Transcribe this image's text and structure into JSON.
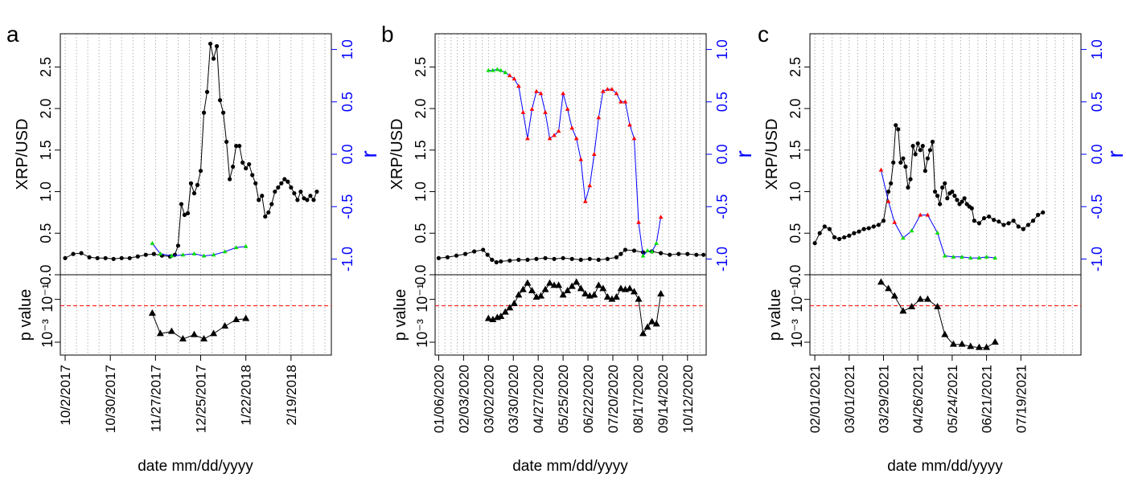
{
  "figure": {
    "panel_letters": [
      "a",
      "b",
      "c"
    ],
    "xlabel": "date mm/dd/yyyy",
    "price_ylabel": "XRP/USD",
    "r_ylabel": "r",
    "p_ylabel": "p value",
    "p_tick_upper": "10⁻¹",
    "p_tick_lower": "10⁻³",
    "colors": {
      "price": "#000000",
      "r_axis": "#0000ff",
      "r_line": "#0000ff",
      "r_sig": "#00dd00",
      "r_nonsig": "#ff0000",
      "threshold": "#ff0000",
      "grid": "#a0a0a0"
    }
  },
  "chart_data": [
    {
      "type": "line",
      "panel": "a",
      "title": "",
      "xlabel": "date mm/dd/yyyy",
      "ylabel": "XRP/USD",
      "y2label": "r",
      "ylim": [
        0,
        2.9
      ],
      "y2lim": [
        -1.15,
        1.15
      ],
      "xlim_days": [
        -3,
        165
      ],
      "x_ticks": [
        {
          "day": 0,
          "label": "10/2/2017"
        },
        {
          "day": 28,
          "label": "10/30/2017"
        },
        {
          "day": 56,
          "label": "11/27/2017"
        },
        {
          "day": 84,
          "label": "12/25/2017"
        },
        {
          "day": 112,
          "label": "1/22/2018"
        },
        {
          "day": 140,
          "label": "2/19/2018"
        }
      ],
      "y_ticks": [
        0,
        0.5,
        1.0,
        1.5,
        2.0,
        2.5
      ],
      "y_tick_labels": [
        "0.0",
        "0.5",
        "1.0",
        "1.5",
        "2.0",
        "2.5"
      ],
      "y2_ticks": [
        -1.0,
        -0.5,
        0.0,
        0.5,
        1.0
      ],
      "y2_tick_labels": [
        "-1.0",
        "-0.5",
        "0.0",
        "0.5",
        "1.0"
      ],
      "price": {
        "name": "XRP/USD",
        "x": [
          0,
          5,
          10,
          15,
          20,
          25,
          30,
          35,
          40,
          45,
          50,
          55,
          60,
          65,
          68,
          70,
          72,
          74,
          76,
          78,
          80,
          82,
          84,
          86,
          88,
          90,
          92,
          94,
          96,
          98,
          100,
          102,
          104,
          106,
          108,
          110,
          112,
          114,
          116,
          118,
          120,
          122,
          124,
          126,
          128,
          130,
          132,
          134,
          136,
          138,
          140,
          142,
          144,
          146,
          148,
          150,
          152,
          154,
          156
        ],
        "y": [
          0.2,
          0.25,
          0.26,
          0.21,
          0.2,
          0.2,
          0.19,
          0.2,
          0.2,
          0.22,
          0.24,
          0.25,
          0.23,
          0.22,
          0.24,
          0.35,
          0.85,
          0.72,
          0.74,
          1.1,
          0.98,
          1.08,
          1.25,
          1.95,
          2.2,
          2.78,
          2.6,
          2.75,
          2.1,
          1.95,
          1.6,
          1.15,
          1.3,
          1.55,
          1.55,
          1.35,
          1.28,
          1.33,
          1.2,
          1.1,
          0.9,
          0.95,
          0.7,
          0.75,
          0.85,
          1.0,
          1.05,
          1.1,
          1.15,
          1.12,
          1.05,
          0.98,
          0.9,
          1.0,
          0.92,
          0.9,
          0.95,
          0.9,
          1.0
        ]
      },
      "r": {
        "name": "r",
        "x": [
          54,
          59,
          66,
          73,
          80,
          86,
          92,
          99,
          106,
          112
        ],
        "y": [
          -0.85,
          -0.95,
          -0.97,
          -0.96,
          -0.95,
          -0.97,
          -0.96,
          -0.93,
          -0.89,
          -0.88
        ],
        "significant": [
          true,
          true,
          true,
          true,
          true,
          true,
          true,
          true,
          true,
          true
        ]
      },
      "p_value": {
        "name": "p value",
        "x": [
          54,
          59,
          66,
          73,
          80,
          86,
          92,
          99,
          106,
          112
        ],
        "log10_p": [
          -1.65,
          -2.6,
          -2.5,
          -2.85,
          -2.65,
          -2.85,
          -2.6,
          -2.25,
          -1.95,
          -1.9
        ]
      },
      "threshold": {
        "p": 0.05,
        "log10_p": -1.3
      }
    },
    {
      "type": "line",
      "panel": "b",
      "title": "",
      "xlabel": "date mm/dd/yyyy",
      "ylabel": "XRP/USD",
      "y2label": "r",
      "ylim": [
        0,
        2.9
      ],
      "y2lim": [
        -1.15,
        1.15
      ],
      "xlim_days": [
        -4,
        301
      ],
      "x_ticks": [
        {
          "day": 0,
          "label": "01/06/2020"
        },
        {
          "day": 28,
          "label": "02/03/2020"
        },
        {
          "day": 56,
          "label": "03/02/2020"
        },
        {
          "day": 84,
          "label": "03/30/2020"
        },
        {
          "day": 112,
          "label": "04/27/2020"
        },
        {
          "day": 140,
          "label": "05/25/2020"
        },
        {
          "day": 168,
          "label": "06/22/2020"
        },
        {
          "day": 196,
          "label": "07/20/2020"
        },
        {
          "day": 224,
          "label": "08/17/2020"
        },
        {
          "day": 252,
          "label": "09/14/2020"
        },
        {
          "day": 280,
          "label": "10/12/2020"
        }
      ],
      "y_ticks": [
        0,
        0.5,
        1.0,
        1.5,
        2.0,
        2.5
      ],
      "y_tick_labels": [
        "0.0",
        "0.5",
        "1.0",
        "1.5",
        "2.0",
        "2.5"
      ],
      "y2_ticks": [
        -1.0,
        -0.5,
        0.0,
        0.5,
        1.0
      ],
      "y2_tick_labels": [
        "-1.0",
        "-0.5",
        "0.0",
        "0.5",
        "1.0"
      ],
      "price": {
        "name": "XRP/USD",
        "x": [
          0,
          10,
          20,
          30,
          40,
          50,
          55,
          60,
          65,
          70,
          80,
          90,
          100,
          110,
          120,
          130,
          140,
          150,
          160,
          170,
          180,
          190,
          200,
          205,
          210,
          220,
          230,
          240,
          250,
          260,
          270,
          280,
          290,
          298
        ],
        "y": [
          0.2,
          0.21,
          0.23,
          0.25,
          0.28,
          0.3,
          0.24,
          0.18,
          0.15,
          0.16,
          0.17,
          0.18,
          0.18,
          0.19,
          0.2,
          0.19,
          0.2,
          0.19,
          0.18,
          0.19,
          0.18,
          0.19,
          0.21,
          0.25,
          0.3,
          0.29,
          0.27,
          0.28,
          0.26,
          0.24,
          0.25,
          0.25,
          0.24,
          0.24
        ]
      },
      "r": {
        "name": "r",
        "x": [
          56,
          61,
          66,
          70,
          75,
          80,
          85,
          90,
          95,
          100,
          105,
          110,
          115,
          120,
          125,
          130,
          135,
          140,
          145,
          150,
          155,
          160,
          165,
          170,
          175,
          180,
          185,
          190,
          195,
          200,
          205,
          210,
          215,
          220,
          225,
          230,
          235,
          240,
          245,
          250
        ],
        "y": [
          0.8,
          0.8,
          0.81,
          0.8,
          0.78,
          0.75,
          0.72,
          0.65,
          0.4,
          0.15,
          0.43,
          0.6,
          0.58,
          0.4,
          0.15,
          0.18,
          0.22,
          0.58,
          0.43,
          0.25,
          0.15,
          -0.05,
          -0.45,
          -0.3,
          0.0,
          0.35,
          0.6,
          0.62,
          0.62,
          0.58,
          0.5,
          0.5,
          0.28,
          0.15,
          -0.65,
          -0.97,
          -0.92,
          -0.93,
          -0.85,
          -0.6
        ],
        "significant": [
          true,
          true,
          true,
          true,
          true,
          false,
          false,
          false,
          false,
          false,
          false,
          false,
          false,
          false,
          false,
          false,
          false,
          false,
          false,
          false,
          false,
          false,
          false,
          false,
          false,
          false,
          false,
          false,
          false,
          false,
          false,
          false,
          false,
          false,
          false,
          true,
          true,
          true,
          true,
          false
        ]
      },
      "p_value": {
        "name": "p value",
        "x": [
          56,
          61,
          66,
          70,
          75,
          80,
          85,
          90,
          95,
          100,
          105,
          110,
          115,
          120,
          125,
          130,
          135,
          140,
          145,
          150,
          155,
          160,
          165,
          170,
          175,
          180,
          185,
          190,
          195,
          200,
          205,
          210,
          215,
          220,
          225,
          230,
          235,
          240,
          245,
          250
        ],
        "log10_p": [
          -1.9,
          -1.95,
          -1.85,
          -1.8,
          -1.6,
          -1.4,
          -1.2,
          -0.8,
          -0.55,
          -0.25,
          -0.6,
          -0.9,
          -0.85,
          -0.55,
          -0.25,
          -0.35,
          -0.35,
          -0.8,
          -0.6,
          -0.4,
          -0.2,
          -0.5,
          -0.75,
          -0.85,
          -0.8,
          -0.35,
          -0.5,
          -0.9,
          -1.0,
          -0.9,
          -0.5,
          -0.55,
          -0.5,
          -0.65,
          -1.0,
          -2.6,
          -2.3,
          -2.05,
          -2.15,
          -0.75
        ]
      },
      "threshold": {
        "p": 0.05,
        "log10_p": -1.3
      }
    },
    {
      "type": "line",
      "panel": "c",
      "title": "",
      "xlabel": "date mm/dd/yyyy",
      "ylabel": "XRP/USD",
      "y2label": "r",
      "ylim": [
        0,
        2.9
      ],
      "y2lim": [
        -1.15,
        1.15
      ],
      "xlim_days": [
        -4,
        217
      ],
      "x_ticks": [
        {
          "day": 0,
          "label": "02/01/2021"
        },
        {
          "day": 28,
          "label": "03/01/2021"
        },
        {
          "day": 56,
          "label": "03/29/2021"
        },
        {
          "day": 84,
          "label": "04/26/2021"
        },
        {
          "day": 112,
          "label": "05/24/2021"
        },
        {
          "day": 140,
          "label": "06/21/2021"
        },
        {
          "day": 168,
          "label": "07/19/2021"
        }
      ],
      "y_ticks": [
        0,
        0.5,
        1.0,
        1.5,
        2.0,
        2.5
      ],
      "y_tick_labels": [
        "0.0",
        "0.5",
        "1.0",
        "1.5",
        "2.0",
        "2.5"
      ],
      "y2_ticks": [
        -1.0,
        -0.5,
        0.0,
        0.5,
        1.0
      ],
      "y2_tick_labels": [
        "-1.0",
        "-0.5",
        "0.0",
        "0.5",
        "1.0"
      ],
      "price": {
        "name": "XRP/USD",
        "x": [
          0,
          4,
          8,
          12,
          16,
          20,
          24,
          28,
          32,
          36,
          40,
          44,
          48,
          52,
          56,
          60,
          62,
          64,
          66,
          68,
          70,
          72,
          74,
          76,
          78,
          80,
          82,
          84,
          86,
          88,
          90,
          92,
          94,
          96,
          98,
          100,
          102,
          104,
          106,
          108,
          110,
          112,
          114,
          116,
          118,
          120,
          122,
          124,
          126,
          128,
          130,
          134,
          138,
          142,
          146,
          150,
          154,
          158,
          162,
          166,
          170,
          174,
          178,
          182,
          186
        ],
        "y": [
          0.38,
          0.5,
          0.58,
          0.55,
          0.45,
          0.43,
          0.45,
          0.47,
          0.5,
          0.52,
          0.55,
          0.56,
          0.58,
          0.6,
          0.65,
          1.0,
          1.1,
          1.35,
          1.8,
          1.75,
          1.35,
          1.4,
          1.3,
          1.05,
          1.15,
          1.55,
          1.45,
          1.58,
          1.5,
          1.55,
          1.25,
          1.4,
          1.5,
          1.6,
          1.0,
          0.95,
          0.85,
          1.05,
          1.1,
          0.92,
          0.98,
          1.0,
          0.95,
          0.9,
          0.85,
          0.88,
          0.92,
          0.85,
          0.82,
          0.8,
          0.65,
          0.62,
          0.68,
          0.7,
          0.66,
          0.64,
          0.6,
          0.62,
          0.65,
          0.58,
          0.55,
          0.6,
          0.65,
          0.72,
          0.75
        ]
      },
      "r": {
        "name": "r",
        "x": [
          54,
          60,
          65,
          72,
          79,
          86,
          92,
          100,
          106,
          113,
          120,
          127,
          134,
          140,
          147
        ],
        "y": [
          -0.15,
          -0.45,
          -0.65,
          -0.8,
          -0.73,
          -0.58,
          -0.58,
          -0.75,
          -0.97,
          -0.98,
          -0.98,
          -0.99,
          -0.99,
          -0.98,
          -0.99
        ],
        "significant": [
          false,
          false,
          false,
          true,
          true,
          false,
          false,
          true,
          true,
          true,
          true,
          true,
          true,
          true,
          true
        ]
      },
      "p_value": {
        "name": "p value",
        "x": [
          54,
          60,
          65,
          72,
          79,
          86,
          92,
          100,
          106,
          113,
          120,
          127,
          134,
          140,
          147
        ],
        "log10_p": [
          -0.2,
          -0.5,
          -0.85,
          -1.55,
          -1.35,
          -1.0,
          -1.0,
          -1.35,
          -2.65,
          -3.1,
          -3.1,
          -3.2,
          -3.25,
          -3.25,
          -3.0
        ]
      },
      "threshold": {
        "p": 0.05,
        "log10_p": -1.3
      }
    }
  ]
}
